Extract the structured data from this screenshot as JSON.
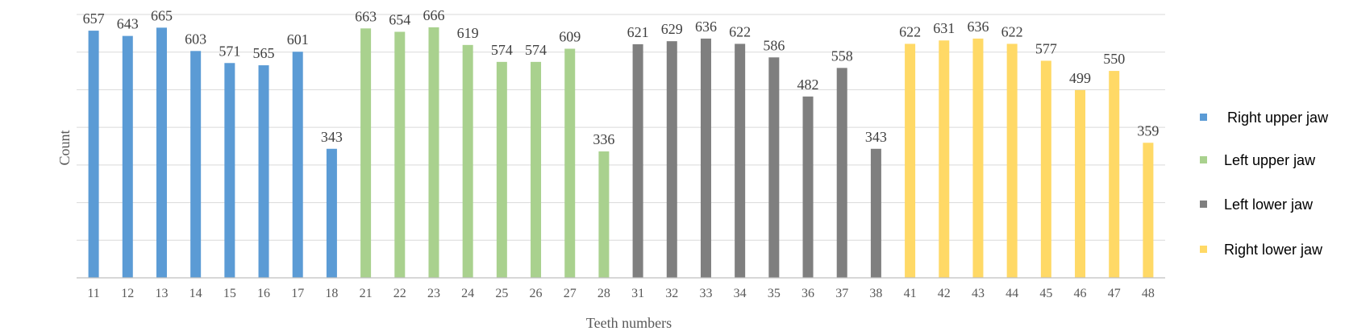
{
  "chart_data": {
    "type": "bar",
    "xlabel": "Teeth numbers",
    "ylabel": "Count",
    "ylim": [
      0,
      700
    ],
    "grid": true,
    "legend_position": "right",
    "series": [
      {
        "name": "Right upper jaw",
        "color": "#5b9bd5",
        "categories": [
          "11",
          "12",
          "13",
          "14",
          "15",
          "16",
          "17",
          "18"
        ],
        "values": [
          657,
          643,
          665,
          603,
          571,
          565,
          601,
          343
        ]
      },
      {
        "name": "Left upper jaw",
        "color": "#a9d18e",
        "categories": [
          "21",
          "22",
          "23",
          "24",
          "25",
          "26",
          "27",
          "28"
        ],
        "values": [
          663,
          654,
          666,
          619,
          574,
          574,
          609,
          336
        ]
      },
      {
        "name": "Left lower jaw",
        "color": "#7f7f7f",
        "categories": [
          "31",
          "32",
          "33",
          "34",
          "35",
          "36",
          "37",
          "38"
        ],
        "values": [
          621,
          629,
          636,
          622,
          586,
          482,
          558,
          343
        ]
      },
      {
        "name": "Right lower jaw",
        "color": "#ffd966",
        "categories": [
          "41",
          "42",
          "43",
          "44",
          "45",
          "46",
          "47",
          "48"
        ],
        "values": [
          622,
          631,
          636,
          622,
          577,
          499,
          550,
          359
        ]
      }
    ]
  }
}
